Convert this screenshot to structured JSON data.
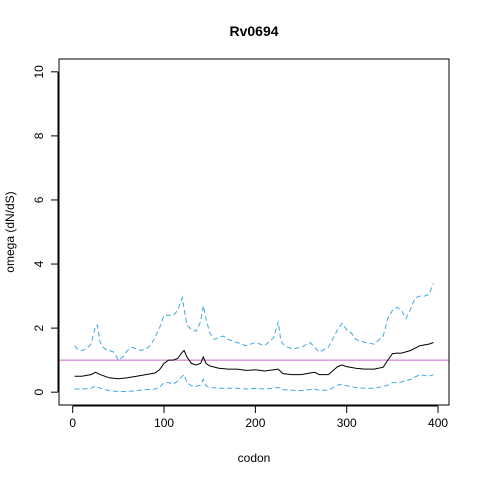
{
  "chart_data": {
    "type": "line",
    "title": "Rv0694",
    "xlabel": "codon",
    "ylabel": "omega (dN/dS)",
    "xlim": [
      -15,
      412
    ],
    "ylim": [
      -0.4,
      10.4
    ],
    "xticks": [
      0,
      100,
      200,
      300,
      400
    ],
    "yticks": [
      0,
      2,
      4,
      6,
      8,
      10
    ],
    "grid": false,
    "legend": "none",
    "reference_line": {
      "y": 1,
      "color": "#cc66cc"
    },
    "series": [
      {
        "role": "upper",
        "color": "#3fa9e6",
        "dash": true,
        "x": [
          2,
          5,
          10,
          15,
          20,
          25,
          27,
          30,
          35,
          40,
          45,
          50,
          55,
          60,
          65,
          70,
          75,
          80,
          85,
          90,
          95,
          100,
          105,
          110,
          115,
          118,
          120,
          122,
          125,
          130,
          135,
          140,
          143,
          146,
          150,
          155,
          160,
          165,
          170,
          175,
          180,
          190,
          200,
          210,
          220,
          225,
          228,
          232,
          240,
          250,
          260,
          265,
          270,
          280,
          290,
          295,
          300,
          305,
          310,
          320,
          330,
          340,
          345,
          350,
          355,
          360,
          365,
          370,
          375,
          380,
          385,
          390,
          395
        ],
        "y": [
          1.45,
          1.35,
          1.3,
          1.35,
          1.5,
          2.05,
          2.1,
          1.55,
          1.35,
          1.3,
          1.25,
          1.0,
          1.1,
          1.3,
          1.4,
          1.35,
          1.3,
          1.35,
          1.45,
          1.7,
          2.0,
          2.4,
          2.4,
          2.4,
          2.55,
          2.8,
          2.95,
          2.6,
          2.1,
          1.95,
          1.9,
          2.2,
          2.7,
          2.3,
          1.85,
          1.65,
          1.7,
          1.75,
          1.65,
          1.6,
          1.55,
          1.45,
          1.55,
          1.45,
          1.7,
          2.2,
          1.6,
          1.45,
          1.35,
          1.4,
          1.55,
          1.4,
          1.25,
          1.4,
          1.95,
          2.15,
          1.95,
          1.85,
          1.65,
          1.55,
          1.5,
          1.75,
          2.3,
          2.55,
          2.65,
          2.55,
          2.3,
          2.6,
          2.95,
          3.0,
          3.0,
          3.05,
          3.4
        ]
      },
      {
        "role": "estimate",
        "color": "#000000",
        "dash": false,
        "x": [
          2,
          10,
          20,
          25,
          30,
          40,
          50,
          60,
          70,
          80,
          90,
          95,
          100,
          105,
          110,
          115,
          120,
          122,
          125,
          130,
          135,
          140,
          143,
          146,
          150,
          160,
          170,
          180,
          190,
          200,
          210,
          220,
          225,
          230,
          240,
          250,
          260,
          265,
          270,
          280,
          290,
          295,
          300,
          310,
          320,
          330,
          340,
          345,
          350,
          355,
          360,
          370,
          380,
          390,
          395
        ],
        "y": [
          0.5,
          0.5,
          0.55,
          0.62,
          0.55,
          0.45,
          0.42,
          0.45,
          0.5,
          0.55,
          0.6,
          0.7,
          0.9,
          1.0,
          1.0,
          1.05,
          1.25,
          1.3,
          1.1,
          0.9,
          0.85,
          0.9,
          1.1,
          0.9,
          0.82,
          0.75,
          0.72,
          0.72,
          0.68,
          0.7,
          0.66,
          0.7,
          0.72,
          0.58,
          0.55,
          0.55,
          0.6,
          0.62,
          0.55,
          0.55,
          0.8,
          0.85,
          0.8,
          0.75,
          0.72,
          0.72,
          0.78,
          1.0,
          1.2,
          1.22,
          1.22,
          1.3,
          1.45,
          1.5,
          1.55
        ]
      },
      {
        "role": "lower",
        "color": "#3fa9e6",
        "dash": true,
        "x": [
          2,
          10,
          20,
          25,
          30,
          40,
          50,
          60,
          70,
          80,
          90,
          95,
          100,
          105,
          110,
          115,
          120,
          122,
          125,
          130,
          135,
          140,
          143,
          146,
          150,
          160,
          170,
          180,
          190,
          200,
          210,
          220,
          225,
          230,
          240,
          250,
          260,
          265,
          270,
          280,
          290,
          295,
          300,
          310,
          320,
          330,
          340,
          345,
          350,
          355,
          360,
          370,
          380,
          390,
          395
        ],
        "y": [
          0.1,
          0.1,
          0.12,
          0.2,
          0.12,
          0.05,
          0.02,
          0.02,
          0.05,
          0.08,
          0.1,
          0.15,
          0.3,
          0.3,
          0.25,
          0.35,
          0.5,
          0.55,
          0.3,
          0.2,
          0.18,
          0.22,
          0.4,
          0.2,
          0.15,
          0.12,
          0.12,
          0.12,
          0.1,
          0.12,
          0.1,
          0.12,
          0.15,
          0.08,
          0.06,
          0.05,
          0.08,
          0.1,
          0.06,
          0.06,
          0.22,
          0.25,
          0.2,
          0.15,
          0.12,
          0.12,
          0.18,
          0.22,
          0.3,
          0.3,
          0.32,
          0.4,
          0.55,
          0.5,
          0.55
        ]
      }
    ]
  }
}
